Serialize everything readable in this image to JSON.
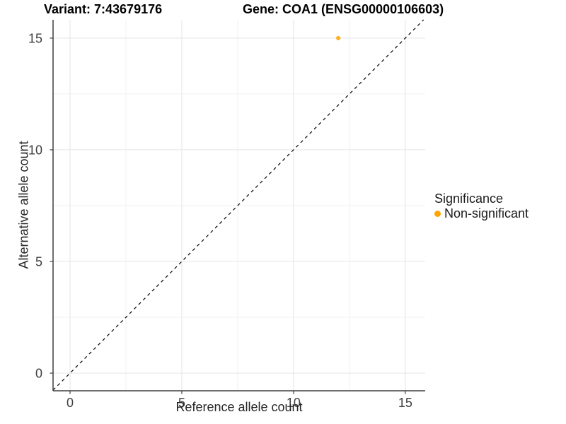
{
  "chart_data": {
    "type": "scatter",
    "title_left": "Variant: 7:43679176",
    "title_right": "Gene: COA1 (ENSG00000106603)",
    "xlabel": "Reference allele count",
    "ylabel": "Alternative allele count",
    "xlim": [
      -0.76,
      15.89
    ],
    "ylim": [
      -0.79,
      15.82
    ],
    "x_ticks": [
      0,
      5,
      10,
      15
    ],
    "y_ticks": [
      0,
      5,
      10,
      15
    ],
    "x_minor_ticks": [
      2.5,
      7.5,
      12.5
    ],
    "y_minor_ticks": [
      2.5,
      7.5,
      12.5
    ],
    "grid": "major and minor gridlines on white background",
    "identity_line": {
      "slope": 1,
      "intercept": 0,
      "style": "dashed",
      "color": "#000000"
    },
    "series": [
      {
        "name": "Non-significant",
        "color": "#FFA500",
        "points": [
          {
            "x": 12,
            "y": 15
          }
        ]
      }
    ],
    "legend": {
      "title": "Significance",
      "position": "right",
      "entries": [
        {
          "label": "Non-significant",
          "color": "#FFA500",
          "marker": "circle"
        }
      ]
    }
  },
  "palette": {
    "point_orange": "#FFA500",
    "grid_major": "#E7E7E7",
    "grid_minor": "#F1F1F1",
    "axis_line": "#3F3F3F",
    "tick_text": "#404040",
    "dashed_line": "#000000"
  }
}
